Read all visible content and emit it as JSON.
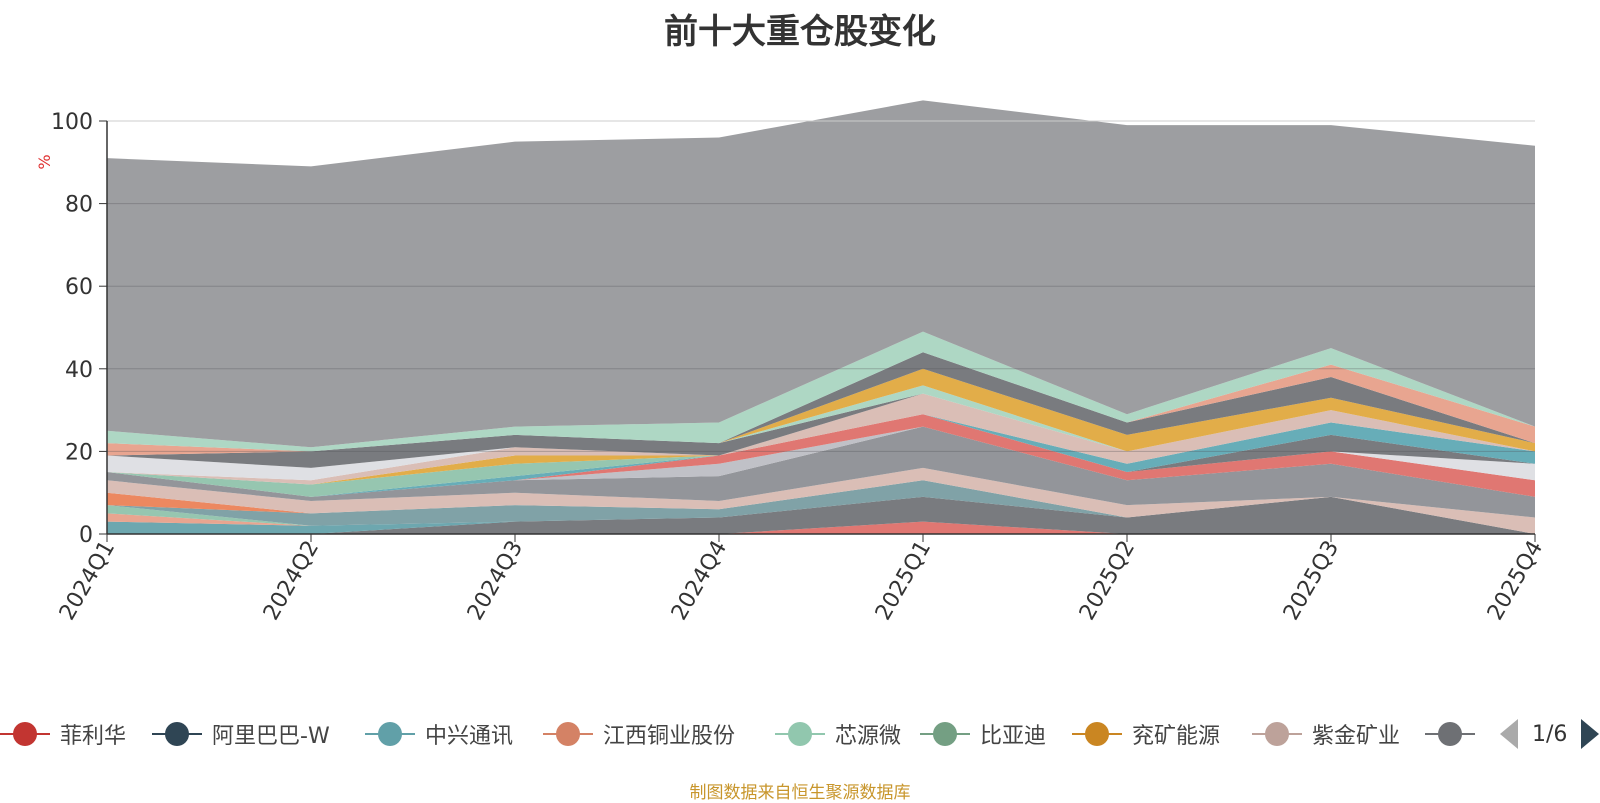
{
  "chart_data": {
    "type": "area",
    "title": "前十大重仓股变化",
    "ylabel": "%",
    "ylim": [
      0,
      100
    ],
    "yticks": [
      0,
      20,
      40,
      60,
      80,
      100
    ],
    "grid": true,
    "legend_position": "bottom",
    "categories": [
      "2024Q1",
      "2024Q2",
      "2024Q3",
      "2024Q4",
      "2025Q1",
      "2025Q2",
      "2025Q3",
      "2025Q4"
    ],
    "series": [
      {
        "name": "菲利华",
        "color": "#dd6b66",
        "values": [
          0,
          0,
          0,
          0,
          3,
          0,
          0,
          0
        ]
      },
      {
        "name": "阿里巴巴-W",
        "color": "#6e7074",
        "values": [
          0,
          0,
          3,
          4,
          6,
          4,
          9,
          0
        ]
      },
      {
        "name": "中兴通讯",
        "color": "#61a0a8",
        "values": [
          3,
          2,
          0,
          0,
          0,
          0,
          0,
          0
        ]
      },
      {
        "name": "江西铜业股份",
        "color": "#e69d87",
        "values": [
          2,
          0,
          0,
          0,
          0,
          0,
          0,
          0
        ]
      },
      {
        "name": "芯源微",
        "color": "#8dc1a9",
        "values": [
          2,
          0,
          0,
          0,
          0,
          0,
          0,
          0
        ]
      },
      {
        "name": "比亚迪",
        "color": "#759aa0",
        "values": [
          0,
          3,
          4,
          2,
          4,
          0,
          0,
          0
        ]
      },
      {
        "name": "兖矿能源",
        "color": "#ea7e53",
        "values": [
          3,
          0,
          0,
          0,
          0,
          0,
          0,
          0
        ]
      },
      {
        "name": "紫金矿业",
        "color": "#d7b9b0",
        "values": [
          3,
          3,
          3,
          2,
          3,
          3,
          0,
          4
        ]
      },
      {
        "name": "",
        "color": "#8a8c91",
        "values": [
          2,
          1,
          3,
          6,
          10,
          6,
          8,
          5
        ]
      },
      {
        "name": "",
        "color": "#bbbcc2",
        "values": [
          0,
          0,
          0,
          3,
          0,
          0,
          0,
          0
        ]
      },
      {
        "name": "",
        "color": "#dd6b66",
        "values": [
          0,
          0,
          0,
          2,
          3,
          2,
          3,
          4
        ]
      },
      {
        "name": "",
        "color": "#dcdde2",
        "values": [
          0,
          0,
          0,
          0,
          0,
          0,
          0,
          4
        ]
      },
      {
        "name": "",
        "color": "#6e7074",
        "values": [
          0,
          0,
          0,
          0,
          0,
          0,
          4,
          0
        ]
      },
      {
        "name": "",
        "color": "#5aa6b2",
        "values": [
          0,
          0,
          1,
          0,
          0,
          2,
          3,
          3
        ]
      },
      {
        "name": "",
        "color": "#8dc1a9",
        "values": [
          0,
          3,
          3,
          0,
          0,
          0,
          0,
          0
        ]
      },
      {
        "name": "",
        "color": "#e0a63a",
        "values": [
          0,
          0,
          2,
          0,
          0,
          0,
          0,
          0
        ]
      },
      {
        "name": "",
        "color": "#d7b9b0",
        "values": [
          0,
          1,
          2,
          0,
          5,
          3,
          3,
          0
        ]
      },
      {
        "name": "",
        "color": "#dcdde2",
        "values": [
          4,
          3,
          0,
          0,
          0,
          0,
          0,
          0
        ]
      },
      {
        "name": "",
        "color": "#6e7074",
        "values": [
          0,
          4,
          3,
          3,
          0,
          0,
          0,
          0
        ]
      },
      {
        "name": "",
        "color": "#a7d4bf",
        "values": [
          0,
          0,
          0,
          0,
          2,
          0,
          0,
          0
        ]
      },
      {
        "name": "",
        "color": "#e0a63a",
        "values": [
          0,
          0,
          0,
          0,
          4,
          4,
          3,
          2
        ]
      },
      {
        "name": "",
        "color": "#6e7074",
        "values": [
          0,
          0,
          0,
          0,
          4,
          3,
          5,
          0
        ]
      },
      {
        "name": "",
        "color": "#e69d87",
        "values": [
          3,
          0,
          0,
          0,
          0,
          0,
          3,
          4
        ]
      },
      {
        "name": "",
        "color": "#a7d4bf",
        "values": [
          3,
          1,
          2,
          5,
          5,
          2,
          4,
          0
        ]
      },
      {
        "name": "",
        "color": "#959699",
        "values": [
          66,
          68,
          69,
          69,
          56,
          70,
          54,
          68
        ]
      }
    ]
  },
  "legend": {
    "items": [
      {
        "label": "菲利华",
        "color": "#c23531"
      },
      {
        "label": "阿里巴巴-W",
        "color": "#2f4554"
      },
      {
        "label": "中兴通讯",
        "color": "#61a0a8"
      },
      {
        "label": "江西铜业股份",
        "color": "#d48265"
      },
      {
        "label": "芯源微",
        "color": "#91c7ae"
      },
      {
        "label": "比亚迪",
        "color": "#749f83"
      },
      {
        "label": "兖矿能源",
        "color": "#ca8622"
      },
      {
        "label": "紫金矿业",
        "color": "#bda29a"
      },
      {
        "label": "",
        "color": "#6e7074"
      }
    ],
    "page_text": "1/6"
  },
  "footer": {
    "note": "制图数据来自恒生聚源数据库"
  }
}
